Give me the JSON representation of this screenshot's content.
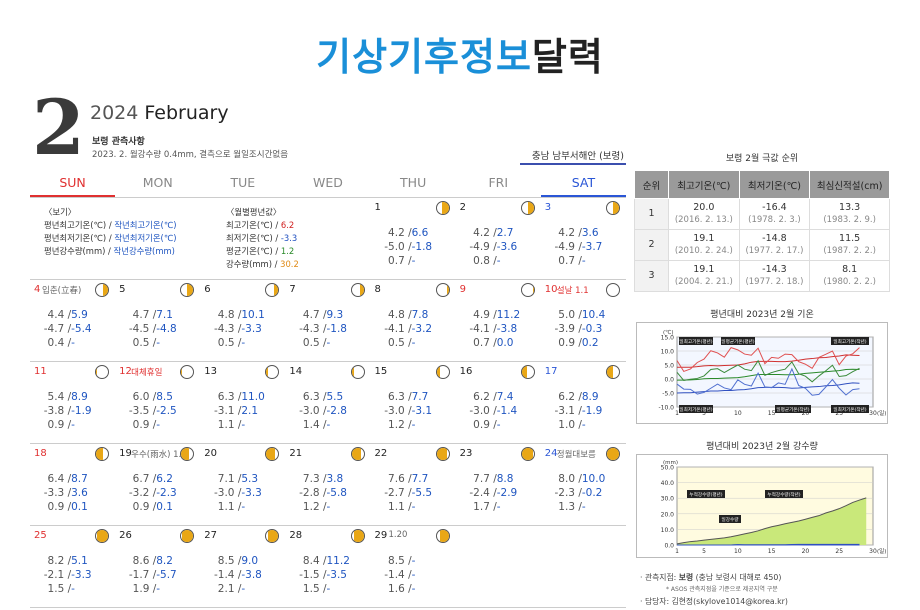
{
  "header": {
    "title_blue": "기상기후정보",
    "title_dark": "달력"
  },
  "month_big": "2",
  "year_month": {
    "year": "2024",
    "month": "February"
  },
  "obs": {
    "title": "보령 관측사항",
    "note": "2023. 2. 월강수량 0.4mm, 결측으로 월일조시간없음"
  },
  "region": "충남 남부서해안 (보령)",
  "weekdays": [
    "SUN",
    "MON",
    "TUE",
    "WED",
    "THU",
    "FRI",
    "SAT"
  ],
  "legend": {
    "title_left": "〈보기〉",
    "rows_left": [
      {
        "label": "평년최고기온(℃) / ",
        "value": "작년최고기온(℃)"
      },
      {
        "label": "평년최저기온(℃) / ",
        "value": "작년최저기온(℃)"
      },
      {
        "label": "평년강수량(mm) / ",
        "value": "작년강수량(mm)"
      }
    ],
    "title_right": "〈월별평년값〉",
    "rows_right": [
      {
        "label": "최고기온(℃) / ",
        "value": "6.2",
        "color": "#d02020"
      },
      {
        "label": "최저기온(℃) / ",
        "value": "-3.3",
        "color": "#2050c0"
      },
      {
        "label": "평균기온(℃) / ",
        "value": "1.2",
        "color": "#2a8a2a"
      },
      {
        "label": "강수량(mm) / ",
        "value": "30.2",
        "color": "#e08a16"
      }
    ]
  },
  "days": [
    {
      "d": "1",
      "col": 4,
      "row": 0,
      "moon": 0.55,
      "side": "right",
      "v": [
        [
          "4.2 /",
          "6.6"
        ],
        [
          "-5.0 /",
          "-1.8"
        ],
        [
          "0.7 /",
          "-"
        ]
      ]
    },
    {
      "d": "2",
      "col": 5,
      "row": 0,
      "moon": 0.5,
      "side": "right",
      "v": [
        [
          "4.2 /",
          "2.7"
        ],
        [
          "-4.9 /",
          "-3.6"
        ],
        [
          "0.8 /",
          "-"
        ]
      ]
    },
    {
      "d": "3",
      "col": 6,
      "row": 0,
      "moon": 0.45,
      "side": "right",
      "cls": "blue",
      "v": [
        [
          "4.2 /",
          "3.6"
        ],
        [
          "-4.9 /",
          "-3.7"
        ],
        [
          "0.7 /",
          "-"
        ]
      ]
    },
    {
      "d": "4",
      "col": 0,
      "row": 1,
      "moon": 0.4,
      "side": "right",
      "cls": "red",
      "note": "입춘(立春)",
      "ncls": "gray",
      "v": [
        [
          "4.4 /",
          "5.9"
        ],
        [
          "-4.7 /",
          "-5.4"
        ],
        [
          "0.4 /",
          "-"
        ]
      ]
    },
    {
      "d": "5",
      "col": 1,
      "row": 1,
      "moon": 0.5,
      "side": "right",
      "v": [
        [
          "4.7 /",
          "7.1"
        ],
        [
          "-4.5 /",
          "-4.8"
        ],
        [
          "0.5 /",
          "-"
        ]
      ]
    },
    {
      "d": "6",
      "col": 2,
      "row": 1,
      "moon": 0.35,
      "side": "right",
      "v": [
        [
          "4.8 /",
          "10.1"
        ],
        [
          "-4.3 /",
          "-3.3"
        ],
        [
          "0.5 /",
          "-"
        ]
      ]
    },
    {
      "d": "7",
      "col": 3,
      "row": 1,
      "moon": 0.3,
      "side": "right",
      "v": [
        [
          "4.7 /",
          "9.3"
        ],
        [
          "-4.3 /",
          "-1.8"
        ],
        [
          "0.5 /",
          "-"
        ]
      ]
    },
    {
      "d": "8",
      "col": 4,
      "row": 1,
      "moon": 0.15,
      "side": "right",
      "v": [
        [
          "4.8 /",
          "7.8"
        ],
        [
          "-4.1 /",
          "-3.2"
        ],
        [
          "0.5 /",
          "-"
        ]
      ]
    },
    {
      "d": "9",
      "col": 5,
      "row": 1,
      "moon": 0.1,
      "side": "right",
      "cls": "red",
      "v": [
        [
          "4.9 /",
          "11.2"
        ],
        [
          "-4.1 /",
          "-3.8"
        ],
        [
          "0.7 /",
          "0.0"
        ]
      ]
    },
    {
      "d": "10",
      "col": 6,
      "row": 1,
      "moon": 0.0,
      "side": "right",
      "cls": "red",
      "note": "설날",
      "ncls": "red",
      "extra": "1.1",
      "v": [
        [
          "5.0 /",
          "10.4"
        ],
        [
          "-3.9 /",
          "-0.3"
        ],
        [
          "0.9 /",
          "0.2"
        ]
      ]
    },
    {
      "d": "11",
      "col": 0,
      "row": 2,
      "moon": 0.05,
      "side": "left",
      "cls": "red",
      "v": [
        [
          "5.4 /",
          "8.9"
        ],
        [
          "-3.8 /",
          "-1.9"
        ],
        [
          "0.9 /",
          "-"
        ]
      ]
    },
    {
      "d": "12",
      "col": 1,
      "row": 2,
      "moon": 0.1,
      "side": "left",
      "cls": "red",
      "note": "대체휴일",
      "ncls": "red",
      "v": [
        [
          "6.0 /",
          "8.5"
        ],
        [
          "-3.5 /",
          "-2.5"
        ],
        [
          "0.9 /",
          "-"
        ]
      ]
    },
    {
      "d": "13",
      "col": 2,
      "row": 2,
      "moon": 0.15,
      "side": "left",
      "v": [
        [
          "6.3 /",
          "11.0"
        ],
        [
          "-3.1 /",
          "2.1"
        ],
        [
          "1.1 /",
          "-"
        ]
      ]
    },
    {
      "d": "14",
      "col": 3,
      "row": 2,
      "moon": 0.2,
      "side": "left",
      "v": [
        [
          "6.3 /",
          "5.5"
        ],
        [
          "-3.0 /",
          "-2.8"
        ],
        [
          "1.4 /",
          "-"
        ]
      ]
    },
    {
      "d": "15",
      "col": 4,
      "row": 2,
      "moon": 0.3,
      "side": "left",
      "v": [
        [
          "6.3 /",
          "7.7"
        ],
        [
          "-3.0 /",
          "-3.1"
        ],
        [
          "1.2 /",
          "-"
        ]
      ]
    },
    {
      "d": "16",
      "col": 5,
      "row": 2,
      "moon": 0.4,
      "side": "left",
      "v": [
        [
          "6.2 /",
          "7.4"
        ],
        [
          "-3.0 /",
          "-1.4"
        ],
        [
          "0.9 /",
          "-"
        ]
      ]
    },
    {
      "d": "17",
      "col": 6,
      "row": 2,
      "moon": 0.5,
      "side": "left",
      "cls": "blue",
      "v": [
        [
          "6.2 /",
          "8.9"
        ],
        [
          "-3.1 /",
          "-1.9"
        ],
        [
          "1.0 /",
          "-"
        ]
      ]
    },
    {
      "d": "18",
      "col": 0,
      "row": 3,
      "moon": 0.6,
      "side": "left",
      "cls": "red",
      "v": [
        [
          "6.4 /",
          "8.7"
        ],
        [
          "-3.3 /",
          "3.6"
        ],
        [
          "0.9 /",
          "0.1"
        ]
      ]
    },
    {
      "d": "19",
      "col": 1,
      "row": 3,
      "moon": 0.65,
      "side": "left",
      "note": "우수(雨水)",
      "ncls": "gray",
      "extra": "1.10",
      "v": [
        [
          "6.7 /",
          "6.2"
        ],
        [
          "-3.2 /",
          "-2.3"
        ],
        [
          "0.9 /",
          "0.1"
        ]
      ]
    },
    {
      "d": "20",
      "col": 2,
      "row": 3,
      "moon": 0.75,
      "side": "left",
      "v": [
        [
          "7.1 /",
          "5.3"
        ],
        [
          "-3.0 /",
          "-3.3"
        ],
        [
          "1.1 /",
          "-"
        ]
      ]
    },
    {
      "d": "21",
      "col": 3,
      "row": 3,
      "moon": 0.8,
      "side": "left",
      "v": [
        [
          "7.3 /",
          "3.8"
        ],
        [
          "-2.8 /",
          "-5.8"
        ],
        [
          "1.2 /",
          "-"
        ]
      ]
    },
    {
      "d": "22",
      "col": 4,
      "row": 3,
      "moon": 0.85,
      "side": "left",
      "v": [
        [
          "7.6 /",
          "7.7"
        ],
        [
          "-2.7 /",
          "-5.5"
        ],
        [
          "1.1 /",
          "-"
        ]
      ]
    },
    {
      "d": "23",
      "col": 5,
      "row": 3,
      "moon": 0.9,
      "side": "left",
      "v": [
        [
          "7.7 /",
          "8.8"
        ],
        [
          "-2.4 /",
          "-2.9"
        ],
        [
          "1.7 /",
          "-"
        ]
      ]
    },
    {
      "d": "24",
      "col": 6,
      "row": 3,
      "moon": 1.0,
      "side": "left",
      "cls": "blue",
      "note": "정월대보름",
      "ncls": "gray",
      "v": [
        [
          "8.0 /",
          "10.0"
        ],
        [
          "-2.3 /",
          "-0.2"
        ],
        [
          "1.3 /",
          "-"
        ]
      ]
    },
    {
      "d": "25",
      "col": 0,
      "row": 4,
      "moon": 0.95,
      "side": "right",
      "cls": "red",
      "v": [
        [
          "8.2 /",
          "5.1"
        ],
        [
          "-2.1 /",
          "-3.3"
        ],
        [
          "1.5 /",
          "-"
        ]
      ]
    },
    {
      "d": "26",
      "col": 1,
      "row": 4,
      "moon": 0.9,
      "side": "right",
      "v": [
        [
          "8.6 /",
          "8.2"
        ],
        [
          "-1.7 /",
          "-5.7"
        ],
        [
          "1.9 /",
          "-"
        ]
      ]
    },
    {
      "d": "27",
      "col": 2,
      "row": 4,
      "moon": 0.85,
      "side": "right",
      "v": [
        [
          "8.5 /",
          "9.0"
        ],
        [
          "-1.4 /",
          "-3.8"
        ],
        [
          "2.1 /",
          "-"
        ]
      ]
    },
    {
      "d": "28",
      "col": 3,
      "row": 4,
      "moon": 0.8,
      "side": "right",
      "v": [
        [
          "8.4 /",
          "11.2"
        ],
        [
          "-1.5 /",
          "-3.5"
        ],
        [
          "1.5 /",
          "-"
        ]
      ]
    },
    {
      "d": "29",
      "col": 4,
      "row": 4,
      "moon": 0.7,
      "side": "right",
      "extra": "1.20",
      "v": [
        [
          "8.5 /",
          "-"
        ],
        [
          "-1.4 /",
          "-"
        ],
        [
          "1.6 /",
          "-"
        ]
      ]
    }
  ],
  "rank": {
    "title": "보령 2월 극값 순위",
    "headers": [
      "순위",
      "최고기온(℃)",
      "최저기온(℃)",
      "최심신적설(cm)"
    ],
    "rows": [
      {
        "rank": "1",
        "max": "20.0",
        "max_d": "(2016. 2. 13.)",
        "min": "-16.4",
        "min_d": "(1978. 2. 3.)",
        "snow": "13.3",
        "snow_d": "(1983. 2. 9.)"
      },
      {
        "rank": "2",
        "max": "19.1",
        "max_d": "(2010. 2. 24.)",
        "min": "-14.8",
        "min_d": "(1977. 2. 17.)",
        "snow": "11.5",
        "snow_d": "(1987. 2. 2.)"
      },
      {
        "rank": "3",
        "max": "19.1",
        "max_d": "(2004. 2. 21.)",
        "min": "-14.3",
        "min_d": "(1977. 2. 18.)",
        "snow": "8.1",
        "snow_d": "(1980. 2. 2.)"
      }
    ]
  },
  "temp_chart": {
    "title": "평년대비 2023년 2월 기온"
  },
  "precip_chart": {
    "title": "평년대비 2023년 2월 강수량"
  },
  "chart_data": [
    {
      "type": "line",
      "title": "평년대비 2023년 2월 기온",
      "ylabel": "(℃)",
      "xlabel": "(일)",
      "ylim": [
        -10,
        15
      ],
      "yticks": [
        "15.0",
        "10.0",
        "5.0",
        "0.0",
        "-5.0",
        "-10.0"
      ],
      "xticks": [
        "1",
        "5",
        "10",
        "15",
        "20",
        "25",
        "30"
      ],
      "series": [
        {
          "name": "일최고기온(평년)",
          "values": [
            4.2,
            4.2,
            4.2,
            4.4,
            4.7,
            4.8,
            4.7,
            4.8,
            4.9,
            5.0,
            5.4,
            6.0,
            6.3,
            6.3,
            6.3,
            6.2,
            6.2,
            6.4,
            6.7,
            7.1,
            7.3,
            7.6,
            7.7,
            8.0,
            8.2,
            8.6,
            8.5,
            8.4
          ]
        },
        {
          "name": "일최고기온(작년)",
          "values": [
            6.6,
            2.7,
            3.6,
            5.9,
            7.1,
            10.1,
            9.3,
            7.8,
            11.2,
            10.4,
            8.9,
            8.5,
            11.0,
            5.5,
            7.7,
            7.4,
            8.9,
            8.7,
            6.2,
            5.3,
            3.8,
            7.7,
            8.8,
            10.0,
            5.1,
            8.2,
            9.0,
            11.2
          ]
        },
        {
          "name": "일평균기온(평년)",
          "values": [
            -0.4,
            -0.4,
            -0.3,
            -0.2,
            0.1,
            0.2,
            0.2,
            0.3,
            0.4,
            0.5,
            0.8,
            1.2,
            1.6,
            1.6,
            1.6,
            1.6,
            1.5,
            1.5,
            1.7,
            2.0,
            2.2,
            2.4,
            2.6,
            2.8,
            3.0,
            3.4,
            3.5,
            3.4
          ]
        },
        {
          "name": "일평균기온(작년)",
          "values": [
            2.4,
            -0.5,
            -0.1,
            0.2,
            1.1,
            3.4,
            3.7,
            2.3,
            3.7,
            5.0,
            3.5,
            3.0,
            6.5,
            1.3,
            2.3,
            3.0,
            3.5,
            6.1,
            1.9,
            1.0,
            -1.0,
            1.1,
            2.9,
            4.9,
            0.9,
            1.2,
            2.6,
            3.8
          ]
        },
        {
          "name": "일최저기온(평년)",
          "values": [
            -5.0,
            -4.9,
            -4.9,
            -4.7,
            -4.5,
            -4.3,
            -4.3,
            -4.1,
            -4.1,
            -3.9,
            -3.8,
            -3.5,
            -3.1,
            -3.0,
            -3.0,
            -3.0,
            -3.1,
            -3.3,
            -3.2,
            -3.0,
            -2.8,
            -2.7,
            -2.4,
            -2.3,
            -2.1,
            -1.7,
            -1.4,
            -1.5
          ]
        },
        {
          "name": "일최저기온(작년)",
          "values": [
            -1.8,
            -3.6,
            -3.7,
            -5.4,
            -4.8,
            -3.3,
            -1.8,
            -3.2,
            -3.8,
            -0.3,
            -1.9,
            -2.5,
            2.1,
            -2.8,
            -3.1,
            -1.4,
            -1.9,
            3.6,
            -2.3,
            -3.3,
            -5.8,
            -5.5,
            -2.9,
            -0.2,
            -3.3,
            -5.7,
            -3.8,
            -3.5
          ]
        }
      ]
    },
    {
      "type": "area",
      "title": "평년대비 2023년 2월 강수량",
      "ylabel": "(mm)",
      "xlabel": "(일)",
      "ylim": [
        0,
        50
      ],
      "yticks": [
        "50.0",
        "40.0",
        "30.0",
        "20.0",
        "10.0",
        "0.0"
      ],
      "xticks": [
        "1",
        "5",
        "10",
        "15",
        "20",
        "25",
        "30"
      ],
      "series": [
        {
          "name": "누적강수량(평년)",
          "values": [
            0.7,
            1.5,
            2.2,
            2.6,
            3.1,
            3.6,
            4.1,
            4.6,
            5.3,
            6.2,
            7.1,
            8.0,
            9.1,
            10.5,
            11.7,
            12.6,
            13.6,
            14.5,
            15.4,
            16.5,
            17.7,
            18.8,
            20.5,
            21.8,
            23.3,
            25.2,
            27.3,
            28.8,
            30.2
          ]
        },
        {
          "name": "일강수량",
          "values": [
            0,
            0,
            0,
            0,
            0,
            0,
            0,
            0,
            0.0,
            0.2,
            0,
            0,
            0,
            0,
            0,
            0,
            0,
            0.1,
            0.1,
            0,
            0,
            0,
            0,
            0,
            0,
            0,
            0,
            0
          ]
        },
        {
          "name": "누적강수량(작년)",
          "values": [
            0,
            0,
            0,
            0,
            0,
            0,
            0,
            0,
            0,
            0.2,
            0.2,
            0.2,
            0.2,
            0.2,
            0.2,
            0.2,
            0.2,
            0.3,
            0.4,
            0.4,
            0.4,
            0.4,
            0.4,
            0.4,
            0.4,
            0.4,
            0.4,
            0.4
          ]
        }
      ]
    }
  ],
  "chart_annotations": {
    "temp": [
      "일최고기온(평년)",
      "일평균기온(평년)",
      "일최고기온(작년)",
      "일최저기온(평년)",
      "일평균기온(작년)",
      "일최저기온(작년)"
    ],
    "precip": [
      "누적강수량(평년)",
      "누적강수량(작년)",
      "일강수량"
    ]
  },
  "notes": {
    "location_label": "· 관측지점: ",
    "location_value": "보령",
    "location_rest": " (충남 보령시 대해로 450)",
    "asos": "* ASOS 관측지점을 기준으로 제공지역 구분",
    "contact": "· 담당자: 김현정(skylove1014@korea.kr)"
  },
  "colors": {
    "accent_blue": "#1a8fd8",
    "sun_red": "#e03030",
    "sat_blue": "#2a56d6",
    "moon_yellow": "#e9a716"
  }
}
